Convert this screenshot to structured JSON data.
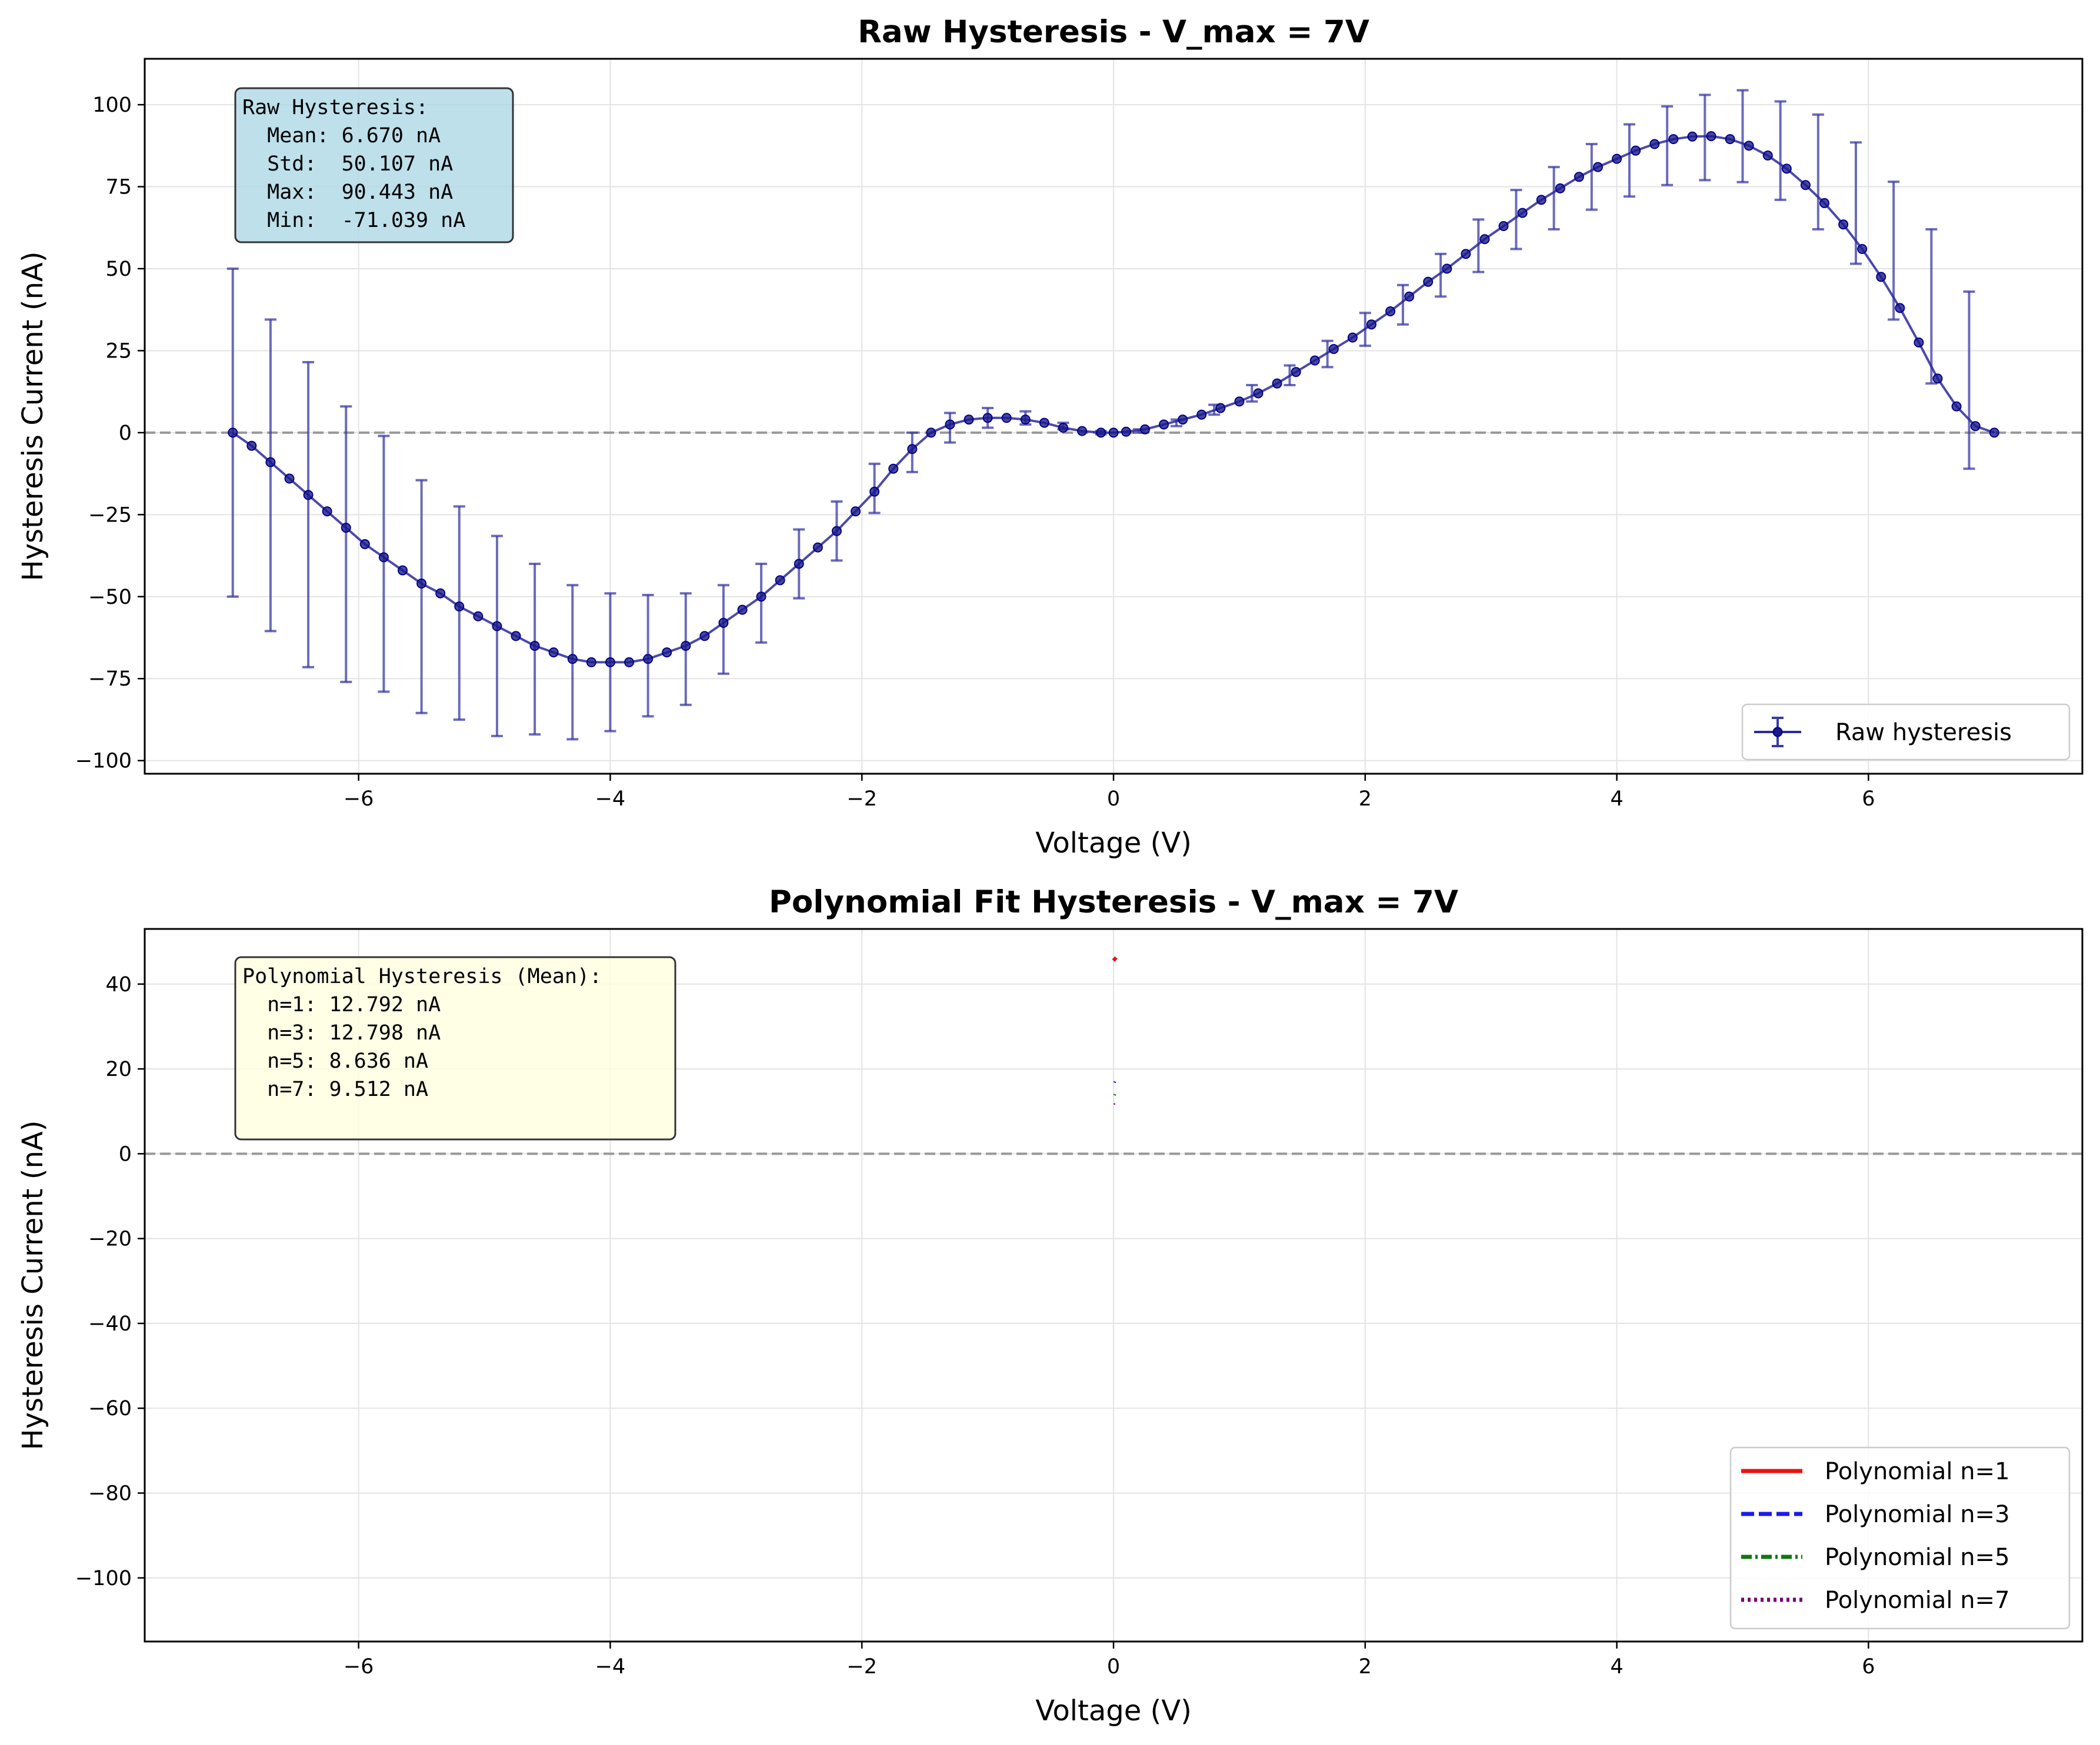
{
  "chart_data": [
    {
      "type": "line",
      "title": "Raw Hysteresis - V_max = 7V",
      "xlabel": "Voltage (V)",
      "ylabel": "Hysteresis Current (nA)",
      "xlim": [
        -7.7,
        7.7
      ],
      "ylim": [
        -104,
        114
      ],
      "xticks": [
        -6,
        -4,
        -2,
        0,
        2,
        4,
        6
      ],
      "yticks": [
        -100,
        -75,
        -50,
        -25,
        0,
        25,
        50,
        75,
        100
      ],
      "grid": true,
      "reference_line_y": 0,
      "legend_position": "lower-right",
      "colors": {
        "series": "#00008B",
        "errorbar": "#3a3aa6",
        "reference": "#999999",
        "infobox_bg": "#add8e6"
      },
      "stats_box": {
        "lines": [
          "Raw Hysteresis:",
          "  Mean: 6.670 nA",
          "  Std:  50.107 nA",
          "  Max:  90.443 nA",
          "  Min:  -71.039 nA"
        ]
      },
      "series": [
        {
          "name": "Raw hysteresis",
          "x": [
            -7.0,
            -6.85,
            -6.7,
            -6.55,
            -6.4,
            -6.25,
            -6.1,
            -5.95,
            -5.8,
            -5.65,
            -5.5,
            -5.35,
            -5.2,
            -5.05,
            -4.9,
            -4.75,
            -4.6,
            -4.45,
            -4.3,
            -4.15,
            -4.0,
            -3.85,
            -3.7,
            -3.55,
            -3.4,
            -3.25,
            -3.1,
            -2.95,
            -2.8,
            -2.65,
            -2.5,
            -2.35,
            -2.2,
            -2.05,
            -1.9,
            -1.75,
            -1.6,
            -1.45,
            -1.3,
            -1.15,
            -1.0,
            -0.85,
            -0.7,
            -0.55,
            -0.4,
            -0.25,
            -0.1,
            0.0,
            0.1,
            0.25,
            0.4,
            0.55,
            0.7,
            0.85,
            1.0,
            1.15,
            1.3,
            1.45,
            1.6,
            1.75,
            1.9,
            2.05,
            2.2,
            2.35,
            2.5,
            2.65,
            2.8,
            2.95,
            3.1,
            3.25,
            3.4,
            3.55,
            3.7,
            3.85,
            4.0,
            4.15,
            4.3,
            4.45,
            4.6,
            4.75,
            4.9,
            5.05,
            5.2,
            5.35,
            5.5,
            5.65,
            5.8,
            5.95,
            6.1,
            6.25,
            6.4,
            6.55,
            6.7,
            6.85,
            7.0
          ],
          "y": [
            0,
            -4,
            -9,
            -14,
            -19,
            -24,
            -29,
            -34,
            -38,
            -42,
            -46,
            -49,
            -53,
            -56,
            -59,
            -62,
            -65,
            -67,
            -69,
            -70,
            -70,
            -70,
            -69,
            -67,
            -65,
            -62,
            -58,
            -54,
            -50,
            -45,
            -40,
            -35,
            -30,
            -24,
            -18,
            -11,
            -5,
            0,
            2.5,
            4,
            4.5,
            4.5,
            4,
            3,
            1.5,
            0.5,
            0,
            0,
            0.3,
            1,
            2.5,
            4,
            5.5,
            7.5,
            9.5,
            12,
            15,
            18.5,
            22,
            25.5,
            29,
            33,
            37,
            41.5,
            46,
            50,
            54.5,
            59,
            63,
            67,
            71,
            74.5,
            78,
            81,
            83.5,
            86,
            88,
            89.5,
            90.3,
            90.4,
            89.5,
            87.5,
            84.5,
            80.5,
            75.5,
            70,
            63.5,
            56,
            47.5,
            38,
            27.5,
            16.5,
            8,
            2,
            0
          ],
          "error_x": [
            -7.0,
            -6.7,
            -6.4,
            -6.1,
            -5.8,
            -5.5,
            -5.2,
            -4.9,
            -4.6,
            -4.3,
            -4.0,
            -3.7,
            -3.4,
            -3.1,
            -2.8,
            -2.5,
            -2.2,
            -1.9,
            -1.6,
            -1.3,
            -1.0,
            -0.7,
            -0.4,
            -0.1,
            0.2,
            0.5,
            0.8,
            1.1,
            1.4,
            1.7,
            2.0,
            2.3,
            2.6,
            2.9,
            3.2,
            3.5,
            3.8,
            4.1,
            4.4,
            4.7,
            5.0,
            5.3,
            5.6,
            5.9,
            6.2,
            6.5,
            6.8
          ],
          "error_center": [
            0,
            -13,
            -25,
            -34,
            -40,
            -50,
            -55,
            -62,
            -66,
            -70,
            -70,
            -68,
            -66,
            -60,
            -52,
            -40,
            -30,
            -17,
            -6,
            1.5,
            4.5,
            4.5,
            2,
            0,
            0.5,
            3,
            7,
            12,
            17.5,
            24,
            31.5,
            39,
            48,
            57,
            65,
            71.5,
            78,
            83,
            87.5,
            90,
            90.4,
            86,
            79.5,
            70,
            55.5,
            38.5,
            16
          ],
          "error_size": [
            50,
            47.5,
            46.5,
            42,
            39,
            35.5,
            32.5,
            30.5,
            26,
            23.5,
            21,
            18.5,
            17,
            13.5,
            12,
            10.5,
            9,
            7.5,
            6,
            4.5,
            3,
            2,
            1,
            0.5,
            0.5,
            1,
            1.5,
            2.5,
            3,
            4,
            5,
            6,
            6.5,
            8,
            9,
            9.5,
            10,
            11,
            12,
            13,
            14,
            15,
            17.5,
            18.5,
            21,
            23.5,
            27
          ]
        }
      ]
    },
    {
      "type": "line",
      "title": "Polynomial Fit Hysteresis - V_max = 7V",
      "xlabel": "Voltage (V)",
      "ylabel": "Hysteresis Current (nA)",
      "xlim": [
        -7.7,
        7.7
      ],
      "ylim": [
        -115,
        53
      ],
      "xticks": [
        -6,
        -4,
        -2,
        0,
        2,
        4,
        6
      ],
      "yticks": [
        -100,
        -80,
        -60,
        -40,
        -20,
        0,
        20,
        40
      ],
      "grid": true,
      "reference_line_y": 0,
      "legend_position": "lower-right",
      "colors": {
        "reference": "#999999",
        "infobox_bg": "#ffffe0"
      },
      "stats_box": {
        "lines": [
          "Polynomial Hysteresis (Mean):",
          "  n=1: 12.792 nA",
          "  n=3: 12.798 nA",
          "  n=5: 8.636 nA",
          "  n=7: 9.512 nA"
        ]
      },
      "series": [
        {
          "name": "Polynomial n=1",
          "color": "#ee1111",
          "dash": "solid",
          "x": [
            0.0,
            0.02
          ],
          "y": [
            46.2,
            45.6
          ]
        },
        {
          "name": "Polynomial n=3",
          "color": "#1a1aee",
          "dash": "dashed",
          "x": [
            0.0,
            0.02
          ],
          "y": [
            17.0,
            16.8
          ]
        },
        {
          "name": "Polynomial n=5",
          "color": "#117711",
          "dash": "dashdot",
          "x": [
            0.0,
            0.02
          ],
          "y": [
            14.0,
            13.8
          ]
        },
        {
          "name": "Polynomial n=7",
          "color": "#770077",
          "dash": "dotted",
          "x": [
            0.0,
            0.02
          ],
          "y": [
            11.8,
            11.6
          ]
        }
      ]
    }
  ]
}
